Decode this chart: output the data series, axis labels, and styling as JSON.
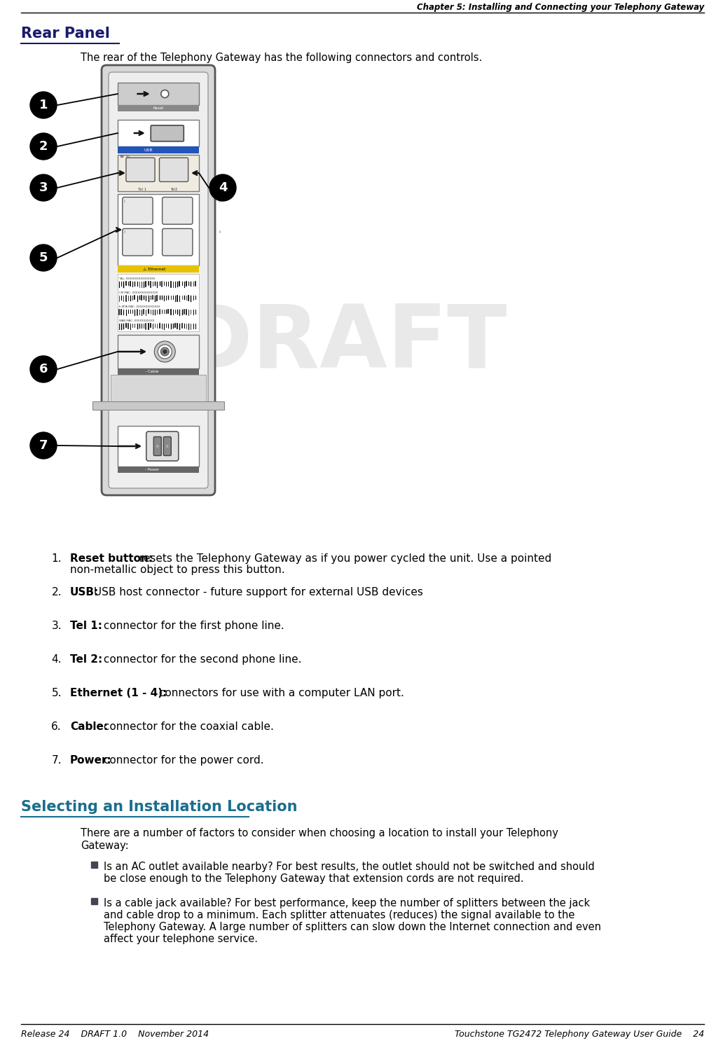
{
  "page_title": "Chapter 5: Installing and Connecting your Telephony Gateway",
  "section1_title": "Rear Panel",
  "section1_intro": "The rear of the Telephony Gateway has the following connectors and controls.",
  "section2_title": "Selecting an Installation Location",
  "section2_intro_line1": "There are a number of factors to consider when choosing a location to install your Telephony",
  "section2_intro_line2": "Gateway:",
  "bullet1_line1": "Is an AC outlet available nearby? For best results, the outlet should not be switched and should",
  "bullet1_line2": "be close enough to the Telephony Gateway that extension cords are not required.",
  "bullet2_line1": "Is a cable jack available? For best performance, keep the number of splitters between the jack",
  "bullet2_line2": "and cable drop to a minimum. Each splitter attenuates (reduces) the signal available to the",
  "bullet2_line3": "Telephony Gateway. A large number of splitters can slow down the Internet connection and even",
  "bullet2_line4": "affect your telephone service.",
  "items": [
    {
      "num": "1",
      "bold": "Reset button:",
      "text": " resets the Telephony Gateway as if you power cycled the unit. Use a pointed",
      "text2": "non-metallic object to press this button."
    },
    {
      "num": "2",
      "bold": "USB:",
      "text": " USB host connector - future support for external USB devices",
      "text2": ""
    },
    {
      "num": "3",
      "bold": "Tel 1:",
      "text": " connector for the first phone line.",
      "text2": ""
    },
    {
      "num": "4",
      "bold": "Tel 2:",
      "text": " connector for the second phone line.",
      "text2": ""
    },
    {
      "num": "5",
      "bold": "Ethernet (1 - 4):",
      "text": " connectors for use with a computer LAN port.",
      "text2": ""
    },
    {
      "num": "6",
      "bold": "Cable:",
      "text": " connector for the coaxial cable.",
      "text2": ""
    },
    {
      "num": "7",
      "bold": "Power:",
      "text": " connector for the power cord.",
      "text2": ""
    }
  ],
  "footer_left": "Release 24    DRAFT 1.0    November 2014",
  "footer_right": "Touchstone TG2472 Telephony Gateway User Guide    24",
  "title_color": "#1a1a6e",
  "section2_color": "#1a6e8e",
  "text_color": "#000000",
  "bg_color": "#ffffff",
  "draft_color": "#cccccc"
}
